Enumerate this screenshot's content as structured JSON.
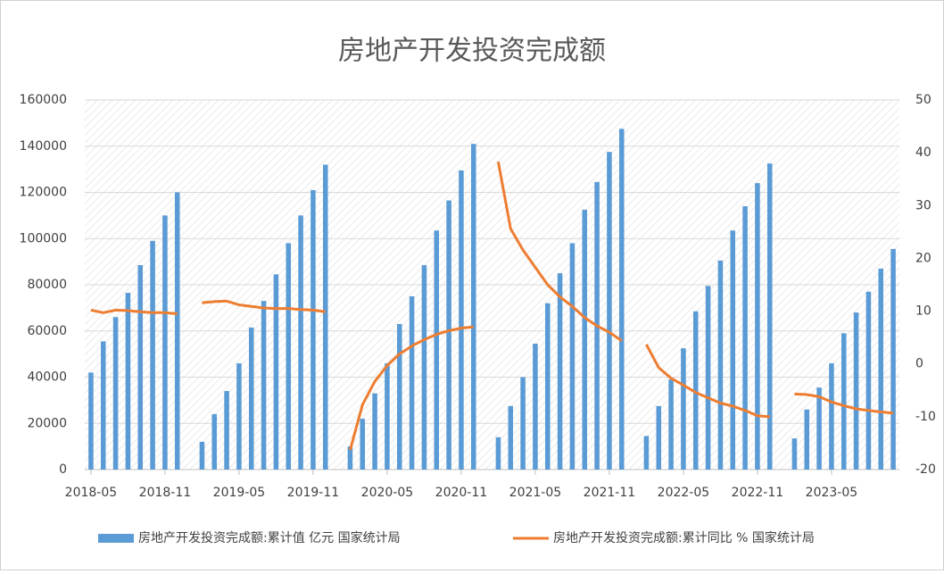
{
  "chart_data": {
    "type": "bar-line",
    "title": "房地产开发投资完成额",
    "categories": [
      "2018-05",
      null,
      null,
      null,
      null,
      null,
      "2018-11",
      null,
      null,
      null,
      null,
      null,
      "2019-05",
      null,
      null,
      null,
      null,
      null,
      "2019-11",
      null,
      null,
      null,
      null,
      null,
      "2020-05",
      null,
      null,
      null,
      null,
      null,
      "2020-11",
      null,
      null,
      null,
      null,
      null,
      "2021-05",
      null,
      null,
      null,
      null,
      null,
      "2021-11",
      null,
      null,
      null,
      null,
      null,
      "2022-05",
      null,
      null,
      null,
      null,
      null,
      "2022-11",
      null,
      null,
      null,
      null,
      null,
      "2023-05",
      null,
      null,
      null,
      null,
      null
    ],
    "series": [
      {
        "name": "房地产开发投资完成额:累计值 亿元 国家统计局",
        "type": "bar",
        "color": "#5b9bd5",
        "values": [
          42000,
          55500,
          66000,
          76500,
          88500,
          99000,
          110000,
          120000,
          null,
          12000,
          24000,
          34000,
          46000,
          61500,
          73000,
          84500,
          98000,
          110000,
          121000,
          132000,
          null,
          10000,
          22000,
          33000,
          46000,
          63000,
          75000,
          88500,
          103500,
          116500,
          129500,
          141000,
          null,
          14000,
          27500,
          40000,
          54500,
          72000,
          85000,
          98000,
          112500,
          124500,
          137500,
          147500,
          null,
          14500,
          27500,
          39000,
          52500,
          68500,
          79500,
          90500,
          103500,
          114000,
          124000,
          132500,
          null,
          13500,
          26000,
          35500,
          46000,
          59000,
          68000,
          77000,
          87000,
          95500
        ]
      },
      {
        "name": "房地产开发投资完成额:累计同比 % 国家统计局",
        "type": "line",
        "axis": "y2",
        "color": "#ed7d31",
        "values": [
          10.2,
          9.7,
          10.2,
          10.1,
          9.9,
          9.7,
          9.7,
          9.5,
          null,
          11.6,
          11.8,
          11.9,
          11.2,
          10.9,
          10.6,
          10.5,
          10.5,
          10.3,
          10.2,
          9.9,
          null,
          -16.3,
          -7.7,
          -3.3,
          -0.3,
          1.9,
          3.4,
          4.6,
          5.6,
          6.3,
          6.8,
          7.0,
          null,
          38.3,
          25.6,
          21.6,
          18.3,
          15.0,
          12.7,
          10.9,
          8.8,
          7.2,
          6.0,
          4.4,
          null,
          3.7,
          -0.7,
          -2.7,
          -4.0,
          -5.4,
          -6.4,
          -7.4,
          -8.0,
          -8.8,
          -9.8,
          -10.0,
          null,
          -5.7,
          -5.8,
          -6.2,
          -7.2,
          -7.9,
          -8.5,
          -8.8,
          -9.1,
          -9.3
        ]
      }
    ],
    "ylim": [
      0,
      160000
    ],
    "yticks": [
      0,
      20000,
      40000,
      60000,
      80000,
      100000,
      120000,
      140000,
      160000
    ],
    "y2lim": [
      -20,
      50
    ],
    "y2ticks": [
      -20,
      -10,
      0,
      10,
      20,
      30,
      40,
      50
    ],
    "grid": true,
    "legend": "bottom"
  }
}
